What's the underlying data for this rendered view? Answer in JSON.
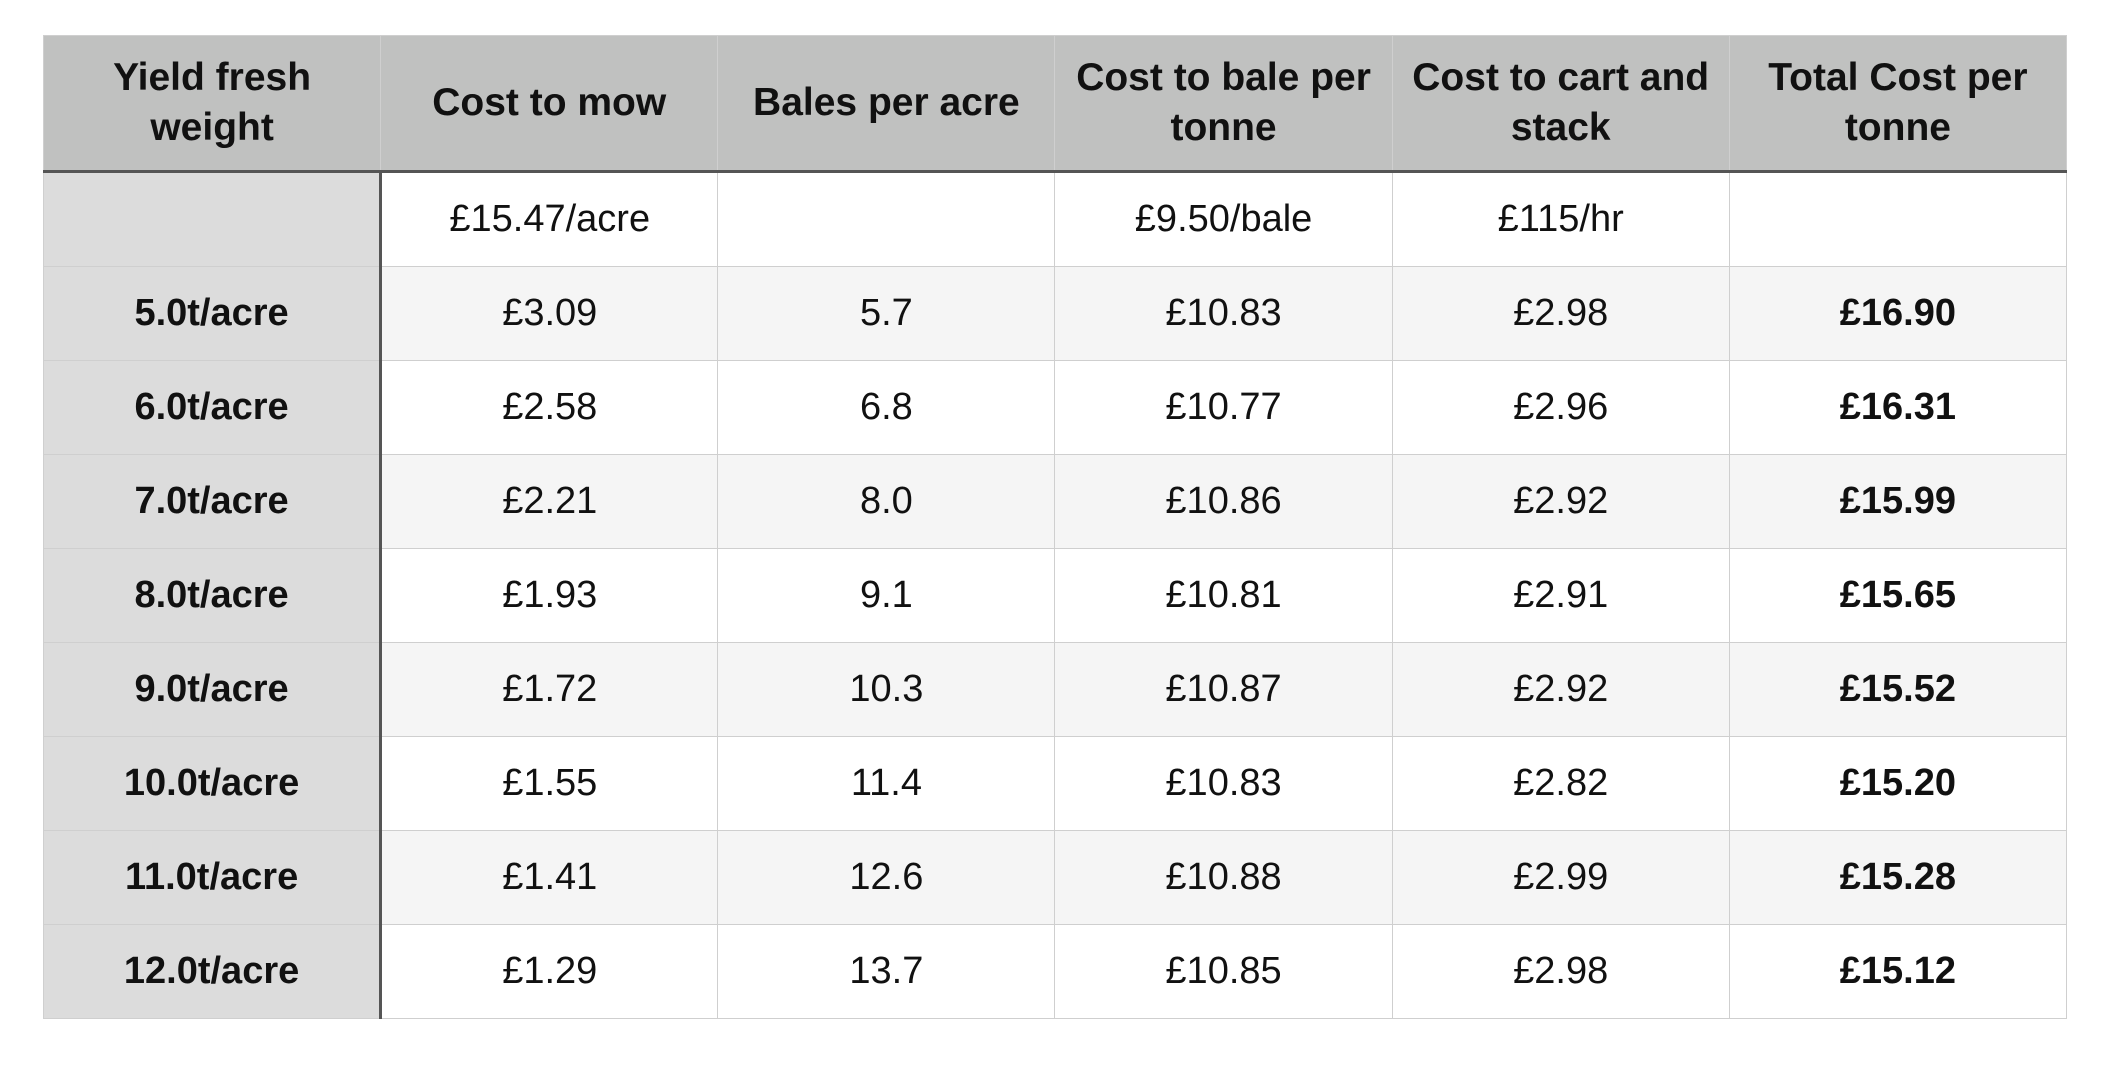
{
  "table": {
    "headers": [
      "Yield fresh weight",
      "Cost to mow",
      "Bales per acre",
      "Cost to bale per tonne",
      "Cost to cart and stack",
      "Total Cost per tonne"
    ],
    "units": [
      null,
      "£15.47/acre",
      null,
      "£9.50/bale",
      "£115/hr",
      null
    ],
    "rows": [
      [
        "5.0t/acre",
        "£3.09",
        "5.7",
        "£10.83",
        "£2.98",
        "£16.90"
      ],
      [
        "6.0t/acre",
        "£2.58",
        "6.8",
        "£10.77",
        "£2.96",
        "£16.31"
      ],
      [
        "7.0t/acre",
        "£2.21",
        "8.0",
        "£10.86",
        "£2.92",
        "£15.99"
      ],
      [
        "8.0t/acre",
        "£1.93",
        "9.1",
        "£10.81",
        "£2.91",
        "£15.65"
      ],
      [
        "9.0t/acre",
        "£1.72",
        "10.3",
        "£10.87",
        "£2.92",
        "£15.52"
      ],
      [
        "10.0t/acre",
        "£1.55",
        "11.4",
        "£10.83",
        "£2.82",
        "£15.20"
      ],
      [
        "11.0t/acre",
        "£1.41",
        "12.6",
        "£10.88",
        "£2.99",
        "£15.28"
      ],
      [
        "12.0t/acre",
        "£1.29",
        "13.7",
        "£10.85",
        "£2.98",
        "£15.12"
      ]
    ]
  }
}
